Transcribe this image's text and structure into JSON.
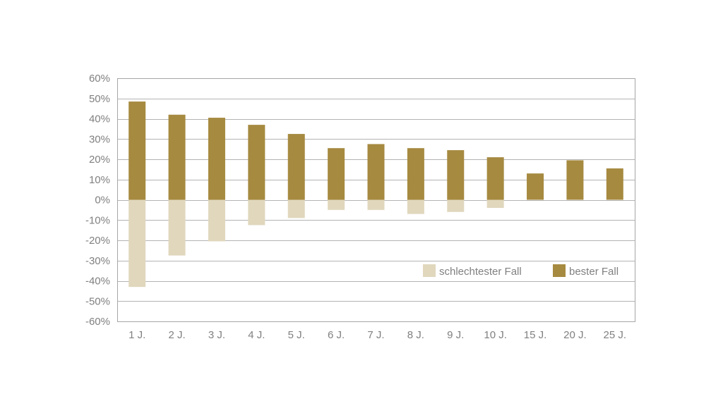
{
  "chart_data": {
    "type": "bar",
    "categories": [
      "1 J.",
      "2 J.",
      "3 J.",
      "4 J.",
      "5 J.",
      "6 J.",
      "7 J.",
      "8 J.",
      "9 J.",
      "10 J.",
      "15 J.",
      "20 J.",
      "25 J."
    ],
    "series": [
      {
        "name": "bester Fall",
        "color": "#a68a40",
        "values": [
          48.5,
          42,
          40.5,
          37,
          32.5,
          25.5,
          27.5,
          25.5,
          24.5,
          21,
          13,
          19.5,
          15.5
        ]
      },
      {
        "name": "schlechtester Fall",
        "color": "#e0d7bd",
        "values": [
          -43,
          -27.5,
          -20.5,
          -12.5,
          -9,
          -5,
          -5,
          -7,
          -6,
          -4,
          0,
          0,
          0
        ]
      }
    ],
    "ylim": [
      -60,
      60
    ],
    "yticks": [
      60,
      50,
      40,
      30,
      20,
      10,
      0,
      -10,
      -20,
      -30,
      -40,
      -50,
      -60
    ],
    "ytick_labels": [
      "60%",
      "50%",
      "40%",
      "30%",
      "20%",
      "10%",
      "0%",
      "-10%",
      "-20%",
      "-30%",
      "-40%",
      "-50%",
      "-60%"
    ],
    "grid": true,
    "legend": {
      "position": "bottom-right",
      "entries": [
        "schlechtester Fall",
        "bester Fall"
      ]
    },
    "title": "",
    "xlabel": "",
    "ylabel": ""
  },
  "colors": {
    "grid": "#b3b3b3",
    "frame": "#a6a6a6",
    "text": "#808080"
  }
}
